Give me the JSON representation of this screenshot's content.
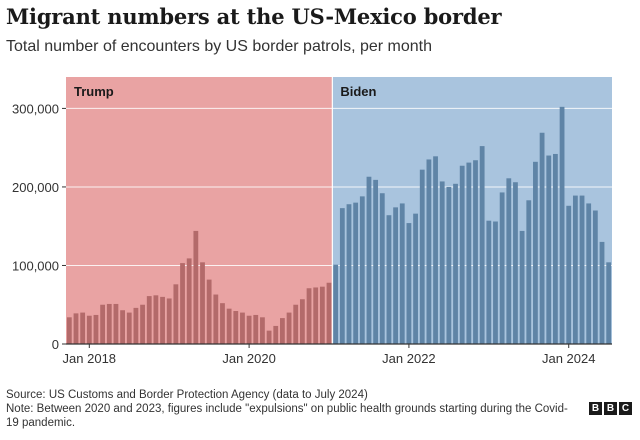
{
  "header": {
    "title": "Migrant numbers at the US-Mexico border",
    "subtitle": "Total number of encounters by US border patrols, per month"
  },
  "footer": {
    "source": "Source: US Customs and Border Protection Agency (data to July 2024)",
    "note": "Note: Between 2020 and 2023, figures include \"expulsions\" on public health grounds starting during the Covid-19 pandemic."
  },
  "logo": {
    "letters": [
      "B",
      "B",
      "C"
    ],
    "name": "BBC"
  },
  "colors": {
    "trump_bg": "#e9a3a3",
    "trump_bar": "#b36a6a",
    "biden_bg": "#a9c4de",
    "biden_bar": "#5f84a6",
    "axis": "#333333",
    "grid": "#ffffff"
  },
  "chart_data": {
    "type": "bar",
    "title": "Migrant numbers at the US-Mexico border",
    "ylabel": "",
    "xlabel": "",
    "ylim": [
      0,
      340000
    ],
    "yticks": [
      0,
      100000,
      200000,
      300000
    ],
    "ytick_labels": [
      "0",
      "100,000",
      "200,000",
      "300,000"
    ],
    "xtick_labels": [
      {
        "label": "Jan 2018",
        "index": 3
      },
      {
        "label": "Jan 2020",
        "index": 27
      },
      {
        "label": "Jan 2022",
        "index": 51
      },
      {
        "label": "Jan 2024",
        "index": 75
      }
    ],
    "periods": [
      {
        "name": "Trump",
        "start_index": 0,
        "end_index": 39
      },
      {
        "name": "Biden",
        "start_index": 40,
        "end_index": 81
      }
    ],
    "categories": [
      "Oct 2017",
      "Nov 2017",
      "Dec 2017",
      "Jan 2018",
      "Feb 2018",
      "Mar 2018",
      "Apr 2018",
      "May 2018",
      "Jun 2018",
      "Jul 2018",
      "Aug 2018",
      "Sep 2018",
      "Oct 2018",
      "Nov 2018",
      "Dec 2018",
      "Jan 2019",
      "Feb 2019",
      "Mar 2019",
      "Apr 2019",
      "May 2019",
      "Jun 2019",
      "Jul 2019",
      "Aug 2019",
      "Sep 2019",
      "Oct 2019",
      "Nov 2019",
      "Dec 2019",
      "Jan 2020",
      "Feb 2020",
      "Mar 2020",
      "Apr 2020",
      "May 2020",
      "Jun 2020",
      "Jul 2020",
      "Aug 2020",
      "Sep 2020",
      "Oct 2020",
      "Nov 2020",
      "Dec 2020",
      "Jan 2021",
      "Feb 2021",
      "Mar 2021",
      "Apr 2021",
      "May 2021",
      "Jun 2021",
      "Jul 2021",
      "Aug 2021",
      "Sep 2021",
      "Oct 2021",
      "Nov 2021",
      "Dec 2021",
      "Jan 2022",
      "Feb 2022",
      "Mar 2022",
      "Apr 2022",
      "May 2022",
      "Jun 2022",
      "Jul 2022",
      "Aug 2022",
      "Sep 2022",
      "Oct 2022",
      "Nov 2022",
      "Dec 2022",
      "Jan 2023",
      "Feb 2023",
      "Mar 2023",
      "Apr 2023",
      "May 2023",
      "Jun 2023",
      "Jul 2023",
      "Aug 2023",
      "Sep 2023",
      "Oct 2023",
      "Nov 2023",
      "Dec 2023",
      "Jan 2024",
      "Feb 2024",
      "Mar 2024",
      "Apr 2024",
      "May 2024",
      "Jun 2024",
      "Jul 2024"
    ],
    "values": [
      34000,
      39000,
      40000,
      36000,
      37000,
      50000,
      51000,
      51000,
      43000,
      40000,
      46000,
      50000,
      61000,
      62000,
      60000,
      58000,
      76000,
      103000,
      109000,
      144000,
      104000,
      82000,
      63000,
      52000,
      45000,
      42000,
      40000,
      36000,
      37000,
      34000,
      17000,
      23000,
      33000,
      40000,
      50000,
      57000,
      71000,
      72000,
      73000,
      78000,
      101000,
      173000,
      178000,
      180000,
      188000,
      213000,
      209000,
      192000,
      164000,
      174000,
      179000,
      154000,
      166000,
      222000,
      235000,
      239000,
      207000,
      200000,
      204000,
      227000,
      231000,
      234000,
      252000,
      157000,
      156000,
      193000,
      211000,
      206000,
      144000,
      183000,
      232000,
      269000,
      240000,
      242000,
      302000,
      176000,
      189000,
      189000,
      179000,
      170000,
      130000,
      104000
    ]
  }
}
